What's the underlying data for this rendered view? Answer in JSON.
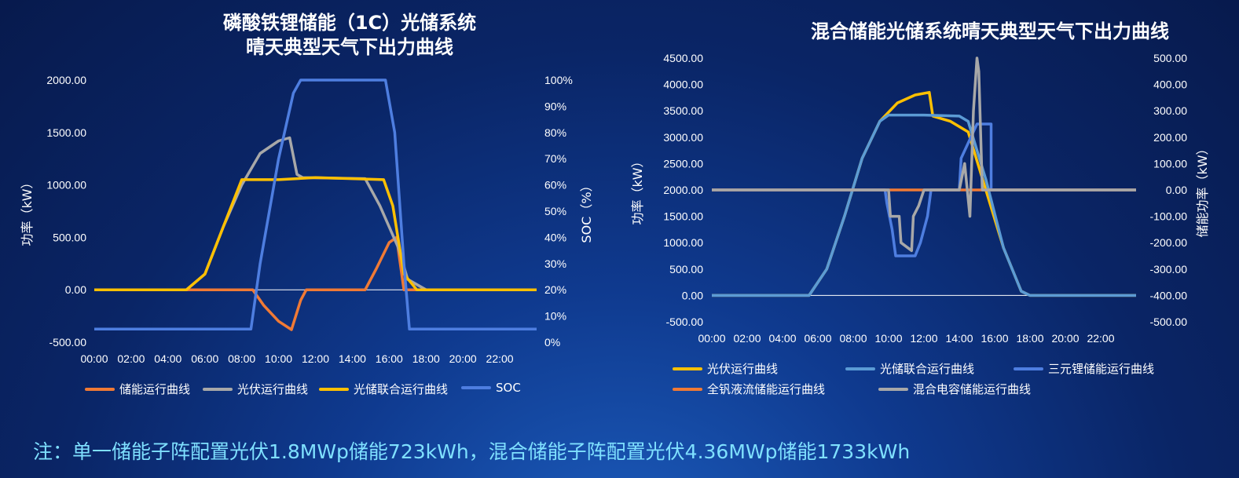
{
  "colors": {
    "orange": "#f07a35",
    "gray": "#a8a8a8",
    "yellow": "#ffc000",
    "blue": "#4e7ee0",
    "lightblue": "#5b9bd5",
    "footnote": "#7fe0ff"
  },
  "footnote": "注：单一储能子阵配置光伏1.8MWp储能723kWh，混合储能子阵配置光伏4.36MWp储能1733kWh",
  "chart_data": [
    {
      "type": "line",
      "title_lines": [
        "磷酸铁锂储能（1C）光储系统",
        "晴天典型天气下出力曲线"
      ],
      "ylabel": "功率（kW）",
      "y2label": "SOC（%）",
      "ylim": [
        -500,
        2000
      ],
      "y2lim": [
        0,
        100
      ],
      "y_ticks": [
        "2000.00",
        "1500.00",
        "1000.00",
        "500.00",
        "0.00",
        "-500.00"
      ],
      "y2_ticks": [
        "100%",
        "90%",
        "80%",
        "70%",
        "60%",
        "50%",
        "40%",
        "30%",
        "20%",
        "10%",
        "0%"
      ],
      "x_ticks": [
        "00:00",
        "02:00",
        "04:00",
        "06:00",
        "08:00",
        "10:00",
        "12:00",
        "14:00",
        "16:00",
        "18:00",
        "20:00",
        "22:00"
      ],
      "legend_placement": "bottom",
      "series": [
        {
          "name": "储能运行曲线",
          "color_key": "orange",
          "axis": "left",
          "points": [
            [
              0,
              0
            ],
            [
              8.6,
              0
            ],
            [
              9.2,
              -150
            ],
            [
              10,
              -300
            ],
            [
              10.7,
              -380
            ],
            [
              11.2,
              -100
            ],
            [
              11.5,
              0
            ],
            [
              14.7,
              0
            ],
            [
              15.3,
              200
            ],
            [
              16,
              450
            ],
            [
              16.4,
              500
            ],
            [
              16.8,
              0
            ],
            [
              24,
              0
            ]
          ]
        },
        {
          "name": "光伏运行曲线",
          "color_key": "gray",
          "axis": "left",
          "points": [
            [
              0,
              0
            ],
            [
              5,
              0
            ],
            [
              6,
              150
            ],
            [
              7,
              600
            ],
            [
              8,
              1000
            ],
            [
              9,
              1300
            ],
            [
              10,
              1420
            ],
            [
              10.6,
              1450
            ],
            [
              11,
              1100
            ],
            [
              11.3,
              1070
            ],
            [
              14.7,
              1060
            ],
            [
              15.5,
              800
            ],
            [
              16.5,
              400
            ],
            [
              17,
              100
            ],
            [
              18,
              0
            ],
            [
              24,
              0
            ]
          ]
        },
        {
          "name": "光储联合运行曲线",
          "color_key": "yellow",
          "axis": "left",
          "points": [
            [
              0,
              0
            ],
            [
              5,
              0
            ],
            [
              6,
              150
            ],
            [
              7,
              600
            ],
            [
              8,
              1050
            ],
            [
              10,
              1050
            ],
            [
              12,
              1070
            ],
            [
              14,
              1060
            ],
            [
              15.7,
              1050
            ],
            [
              16.2,
              800
            ],
            [
              16.8,
              150
            ],
            [
              17.5,
              0
            ],
            [
              24,
              0
            ]
          ]
        },
        {
          "name": "SOC",
          "color_key": "blue",
          "axis": "right",
          "points": [
            [
              0,
              5
            ],
            [
              8.5,
              5
            ],
            [
              9,
              30
            ],
            [
              10,
              70
            ],
            [
              10.8,
              95
            ],
            [
              11.2,
              100
            ],
            [
              15.8,
              100
            ],
            [
              16.3,
              80
            ],
            [
              16.8,
              30
            ],
            [
              17.1,
              5
            ],
            [
              24,
              5
            ]
          ]
        }
      ]
    },
    {
      "type": "line",
      "title": "混合储能光储系统晴天典型天气下出力曲线",
      "ylabel": "功率（kW）",
      "y2label": "储能功率（kW）",
      "ylim": [
        -500,
        4500
      ],
      "y2lim": [
        -500,
        500
      ],
      "y_ticks": [
        "4500.00",
        "4000.00",
        "3500.00",
        "3000.00",
        "2500.00",
        "2000.00",
        "1500.00",
        "1000.00",
        "500.00",
        "0.00",
        "-500.00"
      ],
      "y2_ticks": [
        "500.00",
        "400.00",
        "300.00",
        "200.00",
        "100.00",
        "0.00",
        "-100.00",
        "-200.00",
        "-300.00",
        "-400.00",
        "-500.00"
      ],
      "x_ticks": [
        "00:00",
        "02:00",
        "04:00",
        "06:00",
        "08:00",
        "10:00",
        "12:00",
        "14:00",
        "16:00",
        "18:00",
        "20:00",
        "22:00"
      ],
      "legend_placement": "bottom",
      "series": [
        {
          "name": "光伏运行曲线",
          "color_key": "yellow",
          "axis": "left",
          "points": [
            [
              0,
              0
            ],
            [
              5.5,
              0
            ],
            [
              6.5,
              500
            ],
            [
              7.5,
              1500
            ],
            [
              8.5,
              2600
            ],
            [
              9.5,
              3300
            ],
            [
              10.5,
              3650
            ],
            [
              11.5,
              3800
            ],
            [
              12.3,
              3850
            ],
            [
              12.5,
              3400
            ],
            [
              13.5,
              3300
            ],
            [
              14.5,
              3100
            ],
            [
              15.5,
              2000
            ],
            [
              16.5,
              900
            ],
            [
              17.5,
              80
            ],
            [
              18,
              0
            ],
            [
              24,
              0
            ]
          ]
        },
        {
          "name": "光储联合运行曲线",
          "color_key": "lightblue",
          "axis": "left",
          "points": [
            [
              0,
              0
            ],
            [
              5.5,
              0
            ],
            [
              6.5,
              500
            ],
            [
              7.5,
              1500
            ],
            [
              8.5,
              2600
            ],
            [
              9.5,
              3300
            ],
            [
              10,
              3420
            ],
            [
              12,
              3420
            ],
            [
              14,
              3400
            ],
            [
              14.5,
              3300
            ],
            [
              15.5,
              2200
            ],
            [
              16.5,
              900
            ],
            [
              17.5,
              80
            ],
            [
              18,
              0
            ],
            [
              24,
              0
            ]
          ]
        },
        {
          "name": "三元锂储能运行曲线",
          "color_key": "blue",
          "axis": "right",
          "points": [
            [
              0,
              0
            ],
            [
              9.8,
              0
            ],
            [
              9.9,
              -50
            ],
            [
              10.2,
              -150
            ],
            [
              10.4,
              -250
            ],
            [
              11.5,
              -250
            ],
            [
              11.8,
              -200
            ],
            [
              12.2,
              -100
            ],
            [
              12.4,
              0
            ],
            [
              14,
              0
            ],
            [
              14.1,
              120
            ],
            [
              15,
              250
            ],
            [
              15.8,
              250
            ],
            [
              15.8,
              0
            ],
            [
              24,
              0
            ]
          ]
        },
        {
          "name": "全钒液流储能运行曲线",
          "color_key": "orange",
          "axis": "right",
          "points": [
            [
              0,
              0
            ],
            [
              10.5,
              0
            ],
            [
              11.5,
              0
            ],
            [
              14,
              0
            ],
            [
              15,
              0
            ],
            [
              24,
              0
            ]
          ]
        },
        {
          "name": "混合电容储能运行曲线",
          "color_key": "gray",
          "axis": "right",
          "points": [
            [
              0,
              0
            ],
            [
              10,
              0
            ],
            [
              10.1,
              -100
            ],
            [
              10.6,
              -100
            ],
            [
              10.7,
              -200
            ],
            [
              11.3,
              -230
            ],
            [
              11.4,
              -100
            ],
            [
              11.7,
              -60
            ],
            [
              12,
              0
            ],
            [
              14,
              0
            ],
            [
              14.3,
              100
            ],
            [
              14.6,
              -100
            ],
            [
              14.8,
              300
            ],
            [
              15,
              500
            ],
            [
              15.1,
              450
            ],
            [
              15.3,
              0
            ],
            [
              24,
              0
            ]
          ]
        }
      ]
    }
  ]
}
